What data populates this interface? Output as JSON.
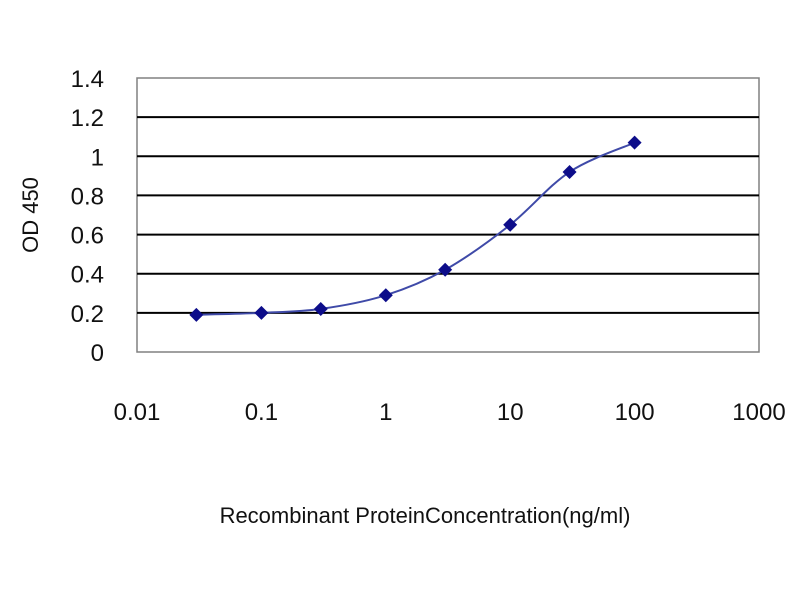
{
  "chart_data": {
    "type": "line",
    "title": "",
    "xlabel": "Recombinant ProteinConcentration(ng/ml)",
    "ylabel": "OD 450",
    "x_scale": "log",
    "xlim": [
      0.01,
      1000
    ],
    "ylim": [
      0,
      1.4
    ],
    "x_ticks": [
      "0.01",
      "0.1",
      "1",
      "10",
      "100",
      "1000"
    ],
    "y_ticks": [
      "0",
      "0.2",
      "0.4",
      "0.6",
      "0.8",
      "1",
      "1.2",
      "1.4"
    ],
    "grid": "horizontal",
    "legend": "none",
    "series": [
      {
        "x": [
          0.03,
          0.1,
          0.3,
          1,
          3,
          10,
          30,
          100
        ],
        "y": [
          0.19,
          0.2,
          0.22,
          0.29,
          0.42,
          0.65,
          0.92,
          1.07
        ]
      }
    ],
    "colors": {
      "line": "#3f4aa8",
      "marker": "#0d0d8a",
      "grid": "#000000",
      "plot_border": "#808080"
    }
  }
}
